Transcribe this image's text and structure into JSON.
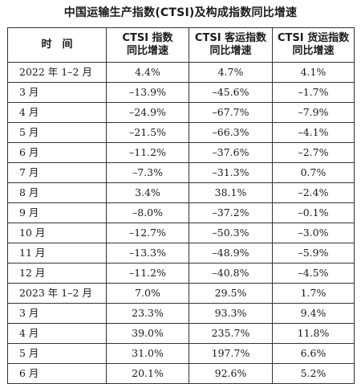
{
  "title": "中国运输生产指数(CTSI)及构成指数同比增速",
  "header": {
    "col0": "时　间",
    "col1_line1": "CTSI 指数",
    "col1_line2": "同比增速",
    "col2_line1": "CTSI 客运指数",
    "col2_line2": "同比增速",
    "col3_line1": "CTSI 货运指数",
    "col3_line2": "同比增速"
  },
  "rows": [
    {
      "period": "2022 年 1–2 月",
      "ctsi": "4.4%",
      "passenger": "4.7%",
      "freight": "4.1%"
    },
    {
      "period": "3 月",
      "ctsi": "–13.9%",
      "passenger": "–45.6%",
      "freight": "–1.7%"
    },
    {
      "period": "4 月",
      "ctsi": "–24.9%",
      "passenger": "–67.7%",
      "freight": "–7.9%"
    },
    {
      "period": "5 月",
      "ctsi": "–21.5%",
      "passenger": "–66.3%",
      "freight": "–4.1%"
    },
    {
      "period": "6 月",
      "ctsi": "–11.2%",
      "passenger": "–37.6%",
      "freight": "–2.7%"
    },
    {
      "period": "7 月",
      "ctsi": "–7.3%",
      "passenger": "–31.3%",
      "freight": "0.7%"
    },
    {
      "period": "8 月",
      "ctsi": "3.4%",
      "passenger": "38.1%",
      "freight": "–2.4%"
    },
    {
      "period": "9 月",
      "ctsi": "–8.0%",
      "passenger": "–37.2%",
      "freight": "–0.1%"
    },
    {
      "period": "10 月",
      "ctsi": "–12.7%",
      "passenger": "–50.3%",
      "freight": "–3.0%"
    },
    {
      "period": "11 月",
      "ctsi": "–13.3%",
      "passenger": "–48.9%",
      "freight": "–5.9%"
    },
    {
      "period": "12 月",
      "ctsi": "–11.2%",
      "passenger": "–40.8%",
      "freight": "–4.5%"
    },
    {
      "period": "2023 年 1–2 月",
      "ctsi": "7.0%",
      "passenger": "29.5%",
      "freight": "1.7%"
    },
    {
      "period": "3 月",
      "ctsi": "23.3%",
      "passenger": "93.3%",
      "freight": "9.4%"
    },
    {
      "period": "4 月",
      "ctsi": "39.0%",
      "passenger": "235.7%",
      "freight": "11.8%"
    },
    {
      "period": "5 月",
      "ctsi": "31.0%",
      "passenger": "197.7%",
      "freight": "6.6%"
    },
    {
      "period": "6 月",
      "ctsi": "20.1%",
      "passenger": "92.6%",
      "freight": "5.2%"
    }
  ]
}
